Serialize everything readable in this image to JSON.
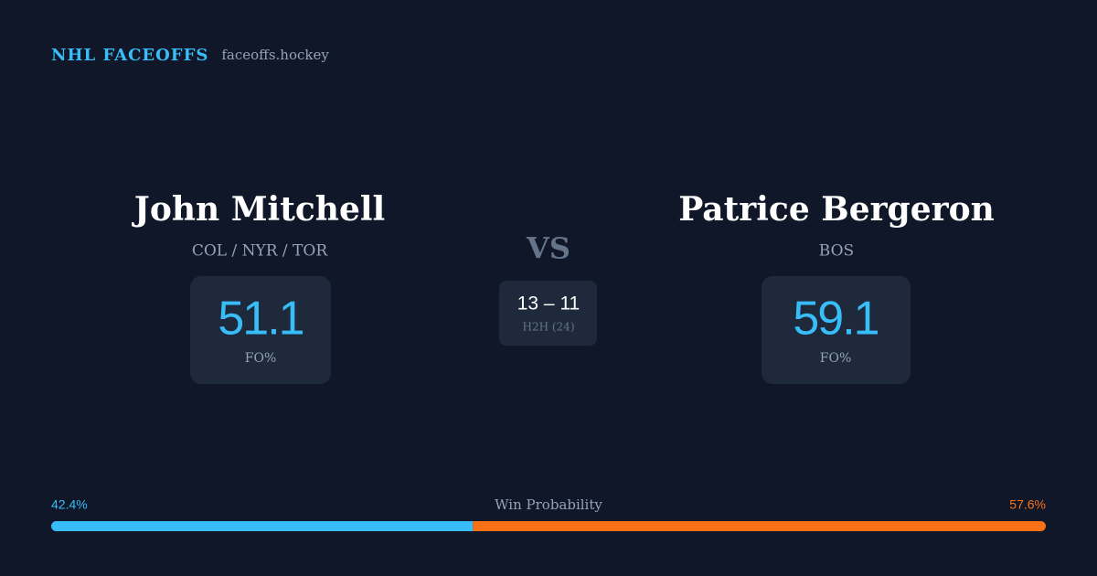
{
  "header": {
    "brand": "NHL FACEOFFS",
    "site": "faceoffs.hockey"
  },
  "players": [
    {
      "name": "John Mitchell",
      "teams": "COL / NYR / TOR",
      "fo_pct": 51.1,
      "fo_label": "FO%"
    },
    {
      "name": "Patrice Bergeron",
      "teams": "BOS",
      "fo_pct": 59.1,
      "fo_label": "FO%"
    }
  ],
  "vs": "VS",
  "h2h": {
    "score": "13 – 11",
    "label": "H2H (24)"
  },
  "win_probability": {
    "label": "Win Probability",
    "values": [
      42.4,
      57.6
    ],
    "value_labels": [
      "42.4%",
      "57.6%"
    ],
    "colors": [
      "#38bdf8",
      "#f97316"
    ]
  }
}
